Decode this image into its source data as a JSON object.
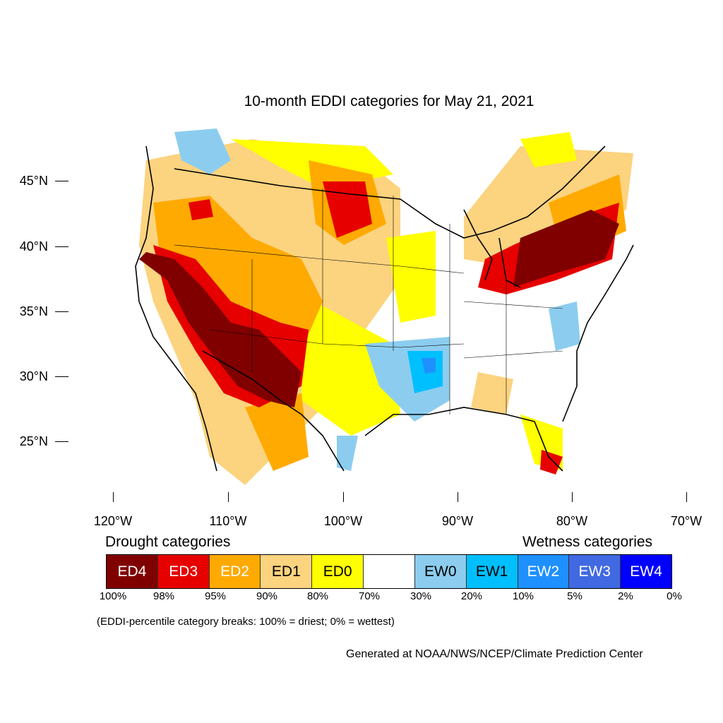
{
  "map": {
    "title": "10-month EDDI categories for May 21, 2021",
    "lat_ticks": [
      "45°N",
      "40°N",
      "35°N",
      "30°N",
      "25°N"
    ],
    "lon_ticks": [
      "120°W",
      "110°W",
      "100°W",
      "90°W",
      "80°W",
      "70°W"
    ]
  },
  "legend": {
    "drought_heading": "Drought categories",
    "wetness_heading": "Wetness categories",
    "categories": [
      {
        "label": "ED4",
        "color": "#800000",
        "text_color": "#ffffff"
      },
      {
        "label": "ED3",
        "color": "#e60000",
        "text_color": "#ffffff"
      },
      {
        "label": "ED2",
        "color": "#ffaa00",
        "text_color": "#ffffff"
      },
      {
        "label": "ED1",
        "color": "#fcd37f",
        "text_color": "#000000"
      },
      {
        "label": "ED0",
        "color": "#ffff00",
        "text_color": "#000000"
      },
      {
        "label": "",
        "color": "#ffffff",
        "text_color": "#000000"
      },
      {
        "label": "EW0",
        "color": "#8ccdef",
        "text_color": "#000000"
      },
      {
        "label": "EW1",
        "color": "#00bfff",
        "text_color": "#000000"
      },
      {
        "label": "EW2",
        "color": "#1e90ff",
        "text_color": "#ffffff"
      },
      {
        "label": "EW3",
        "color": "#4169e1",
        "text_color": "#ffffff"
      },
      {
        "label": "EW4",
        "color": "#0000ff",
        "text_color": "#ffffff"
      }
    ],
    "percent_breaks": [
      "100%",
      "98%",
      "95%",
      "90%",
      "80%",
      "70%",
      "30%",
      "20%",
      "10%",
      "5%",
      "2%",
      "0%"
    ]
  },
  "footnote": "(EDDI-percentile category breaks: 100% = driest; 0% = wettest)",
  "credit": "Generated at NOAA/NWS/NCEP/Climate Prediction Center"
}
